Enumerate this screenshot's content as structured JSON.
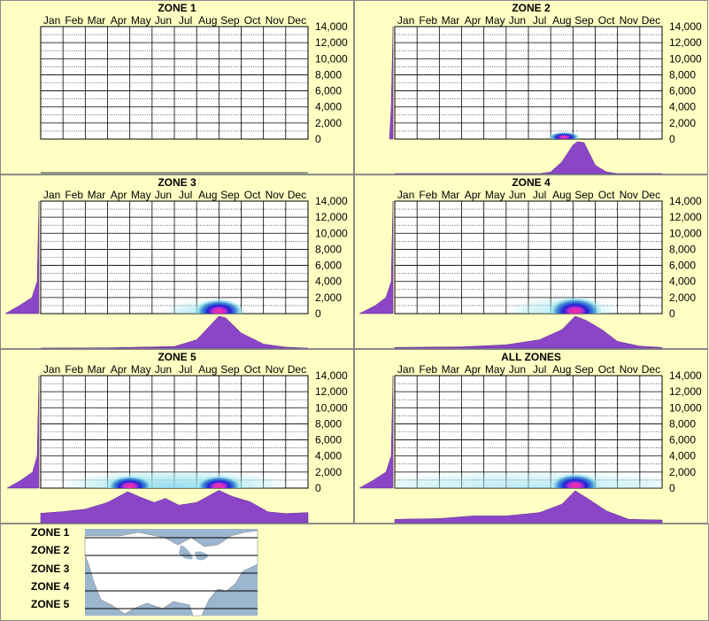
{
  "chart_data": [
    {
      "type": "area",
      "title": "ZONE 1",
      "months": [
        "Jan",
        "Feb",
        "Mar",
        "Apr",
        "May",
        "Jun",
        "Jul",
        "Aug",
        "Sep",
        "Oct",
        "Nov",
        "Dec"
      ],
      "ylim": [
        0,
        14000
      ],
      "yticks": [
        "14,000",
        "12,000",
        "10,000",
        "8,000",
        "6,000",
        "4,000",
        "2,000",
        "0"
      ],
      "heat": [],
      "season_curve": [],
      "elev_curve": []
    },
    {
      "type": "area",
      "title": "ZONE 2",
      "months": [
        "Jan",
        "Feb",
        "Mar",
        "Apr",
        "May",
        "Jun",
        "Jul",
        "Aug",
        "Sep",
        "Oct",
        "Nov",
        "Dec"
      ],
      "ylim": [
        0,
        14000
      ],
      "yticks": [
        "14,000",
        "12,000",
        "10,000",
        "8,000",
        "6,000",
        "4,000",
        "2,000",
        "0"
      ],
      "heat": [
        {
          "month": 7.6,
          "elev": 250,
          "width": 0.9,
          "height": 300,
          "intensity": 1.0
        }
      ],
      "season_curve": [
        [
          0,
          0
        ],
        [
          6.5,
          0
        ],
        [
          7.0,
          0.05
        ],
        [
          7.5,
          0.35
        ],
        [
          8.0,
          0.85
        ],
        [
          8.2,
          0.95
        ],
        [
          8.5,
          0.92
        ],
        [
          9.0,
          0.25
        ],
        [
          9.5,
          0.05
        ],
        [
          10,
          0
        ],
        [
          12,
          0
        ]
      ],
      "elev_curve": [
        [
          0,
          0.1
        ],
        [
          4000,
          0.05
        ],
        [
          14000,
          0
        ]
      ]
    },
    {
      "type": "area",
      "title": "ZONE 3",
      "months": [
        "Jan",
        "Feb",
        "Mar",
        "Apr",
        "May",
        "Jun",
        "Jul",
        "Aug",
        "Sep",
        "Oct",
        "Nov",
        "Dec"
      ],
      "ylim": [
        0,
        14000
      ],
      "yticks": [
        "14,000",
        "12,000",
        "10,000",
        "8,000",
        "6,000",
        "4,000",
        "2,000",
        "0"
      ],
      "heat": [
        {
          "month": 8.0,
          "elev": 300,
          "width": 1.4,
          "height": 700,
          "intensity": 1.0
        },
        {
          "month": 7.4,
          "elev": 150,
          "width": 2.5,
          "height": 700,
          "intensity": 0.35
        }
      ],
      "season_curve": [
        [
          0,
          0
        ],
        [
          3,
          0.01
        ],
        [
          6,
          0.05
        ],
        [
          7,
          0.25
        ],
        [
          8.0,
          0.95
        ],
        [
          8.3,
          0.9
        ],
        [
          9,
          0.45
        ],
        [
          10,
          0.12
        ],
        [
          11,
          0.03
        ],
        [
          12,
          0
        ]
      ],
      "elev_curve": [
        [
          0,
          0.95
        ],
        [
          1000,
          0.55
        ],
        [
          2000,
          0.2
        ],
        [
          4000,
          0.05
        ],
        [
          14000,
          0
        ]
      ]
    },
    {
      "type": "area",
      "title": "ZONE 4",
      "months": [
        "Jan",
        "Feb",
        "Mar",
        "Apr",
        "May",
        "Jun",
        "Jul",
        "Aug",
        "Sep",
        "Oct",
        "Nov",
        "Dec"
      ],
      "ylim": [
        0,
        14000
      ],
      "yticks": [
        "14,000",
        "12,000",
        "10,000",
        "8,000",
        "6,000",
        "4,000",
        "2,000",
        "0"
      ],
      "heat": [
        {
          "month": 8.1,
          "elev": 300,
          "width": 1.5,
          "height": 800,
          "intensity": 1.0
        },
        {
          "month": 7.6,
          "elev": 200,
          "width": 3.2,
          "height": 900,
          "intensity": 0.35
        }
      ],
      "season_curve": [
        [
          0,
          0.02
        ],
        [
          3,
          0.04
        ],
        [
          5,
          0.1
        ],
        [
          6.5,
          0.25
        ],
        [
          7.5,
          0.55
        ],
        [
          8.1,
          0.95
        ],
        [
          8.6,
          0.82
        ],
        [
          9.3,
          0.55
        ],
        [
          10,
          0.2
        ],
        [
          11,
          0.06
        ],
        [
          12,
          0.02
        ]
      ],
      "elev_curve": [
        [
          0,
          0.95
        ],
        [
          1000,
          0.5
        ],
        [
          2000,
          0.2
        ],
        [
          4000,
          0.05
        ],
        [
          14000,
          0
        ]
      ]
    },
    {
      "type": "area",
      "title": "ZONE 5",
      "months": [
        "Jan",
        "Feb",
        "Mar",
        "Apr",
        "May",
        "Jun",
        "Jul",
        "Aug",
        "Sep",
        "Oct",
        "Nov",
        "Dec"
      ],
      "ylim": [
        0,
        14000
      ],
      "yticks": [
        "14,000",
        "12,000",
        "10,000",
        "8,000",
        "6,000",
        "4,000",
        "2,000",
        "0"
      ],
      "heat": [
        {
          "month": 4.0,
          "elev": 250,
          "width": 1.3,
          "height": 600,
          "intensity": 1.0
        },
        {
          "month": 8.0,
          "elev": 250,
          "width": 1.3,
          "height": 600,
          "intensity": 1.0
        },
        {
          "month": 6.0,
          "elev": 300,
          "width": 6.5,
          "height": 900,
          "intensity": 0.75
        }
      ],
      "season_curve": [
        [
          0,
          0.28
        ],
        [
          1,
          0.33
        ],
        [
          2,
          0.4
        ],
        [
          3,
          0.6
        ],
        [
          3.9,
          0.92
        ],
        [
          4.5,
          0.75
        ],
        [
          5.1,
          0.6
        ],
        [
          5.6,
          0.72
        ],
        [
          6.2,
          0.52
        ],
        [
          7,
          0.6
        ],
        [
          8.0,
          0.96
        ],
        [
          8.6,
          0.78
        ],
        [
          9.4,
          0.62
        ],
        [
          10.2,
          0.32
        ],
        [
          11,
          0.27
        ],
        [
          12,
          0.3
        ]
      ],
      "elev_curve": [
        [
          0,
          0.9
        ],
        [
          1000,
          0.5
        ],
        [
          2000,
          0.18
        ],
        [
          4000,
          0.05
        ],
        [
          14000,
          0
        ]
      ]
    },
    {
      "type": "area",
      "title": "ALL ZONES",
      "months": [
        "Jan",
        "Feb",
        "Mar",
        "Apr",
        "May",
        "Jun",
        "Jul",
        "Aug",
        "Sep",
        "Oct",
        "Nov",
        "Dec"
      ],
      "ylim": [
        0,
        14000
      ],
      "yticks": [
        "14,000",
        "12,000",
        "10,000",
        "8,000",
        "6,000",
        "4,000",
        "2,000",
        "0"
      ],
      "heat": [
        {
          "month": 8.1,
          "elev": 300,
          "width": 1.4,
          "height": 700,
          "intensity": 1.0
        },
        {
          "month": 6.0,
          "elev": 200,
          "width": 10,
          "height": 900,
          "intensity": 0.3
        }
      ],
      "season_curve": [
        [
          0,
          0.1
        ],
        [
          2,
          0.12
        ],
        [
          3.5,
          0.2
        ],
        [
          5,
          0.2
        ],
        [
          6.5,
          0.3
        ],
        [
          7.5,
          0.55
        ],
        [
          8.1,
          0.95
        ],
        [
          8.7,
          0.7
        ],
        [
          9.5,
          0.35
        ],
        [
          10.5,
          0.1
        ],
        [
          12,
          0.08
        ]
      ],
      "elev_curve": [
        [
          0,
          0.95
        ],
        [
          1000,
          0.55
        ],
        [
          2000,
          0.2
        ],
        [
          4000,
          0.05
        ],
        [
          14000,
          0
        ]
      ]
    }
  ],
  "legend": {
    "zones": [
      "ZONE 1",
      "ZONE 2",
      "ZONE 3",
      "ZONE 4",
      "ZONE 5"
    ],
    "map_icon": "us-map-icon"
  },
  "colors": {
    "background": "#ffffc4",
    "plot_bg": "#ffffff",
    "area_fill": "#8b46c8",
    "heat_core": "#ff2d9c",
    "heat_mid": "#1d22d6",
    "heat_outer": "#9fe7ee"
  }
}
